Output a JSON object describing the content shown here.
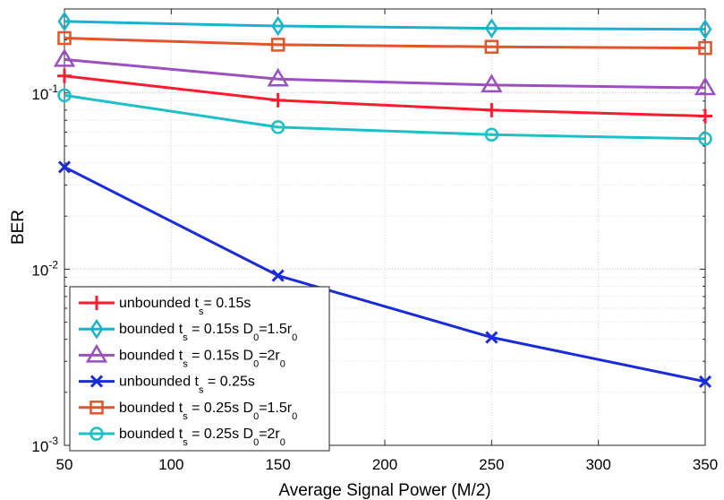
{
  "chart_data": {
    "type": "line",
    "x": [
      50,
      150,
      250,
      350
    ],
    "x_ticks": [
      50,
      100,
      150,
      200,
      250,
      300,
      350
    ],
    "xlim": [
      50,
      350
    ],
    "ylim": [
      0.001,
      0.3
    ],
    "y_scale": "log",
    "y_ticks": [
      {
        "value": 0.001,
        "base": "10",
        "exp": "-3"
      },
      {
        "value": 0.01,
        "base": "10",
        "exp": "-2"
      },
      {
        "value": 0.1,
        "base": "10",
        "exp": "-1"
      }
    ],
    "xlabel": "Average Signal Power (M/2)",
    "ylabel": "BER",
    "grid": true,
    "legend_position": "bottom-left",
    "series": [
      {
        "name": "unbounded t_s= 0.15s",
        "label_parts": {
          "pre": "unbounded t",
          "sub1": "s",
          "mid": "= 0.15s",
          "sub2": "",
          "post": ""
        },
        "color": "#ff1a2e",
        "marker": "plus",
        "values": [
          0.125,
          0.091,
          0.08,
          0.074
        ]
      },
      {
        "name": "bounded t_s = 0.15s D_0=1.5r_0",
        "label_parts": {
          "pre": "bounded t",
          "sub1": "s",
          "mid": " = 0.15s D",
          "sub2": "0",
          "post": "=1.5r",
          "sub3": "0"
        },
        "color": "#1ab3cf",
        "marker": "diamond",
        "values": [
          0.255,
          0.24,
          0.233,
          0.23
        ]
      },
      {
        "name": "bounded t_s = 0.15s D_0=2r_0",
        "label_parts": {
          "pre": "bounded t",
          "sub1": "s",
          "mid": " = 0.15s D",
          "sub2": "0",
          "post": "=2r",
          "sub3": "0"
        },
        "color": "#9b4fc0",
        "marker": "triangle",
        "values": [
          0.155,
          0.12,
          0.111,
          0.107
        ]
      },
      {
        "name": "unbounded t_s = 0.25s",
        "label_parts": {
          "pre": "unbounded t",
          "sub1": "s",
          "mid": " = 0.25s",
          "sub2": "",
          "post": ""
        },
        "color": "#1a2bdc",
        "marker": "x",
        "values": [
          0.038,
          0.0092,
          0.0041,
          0.0023
        ]
      },
      {
        "name": "bounded t_s = 0.25s D_0=1.5r_0",
        "label_parts": {
          "pre": "bounded t",
          "sub1": "s",
          "mid": " = 0.25s D",
          "sub2": "0",
          "post": "=1.5r",
          "sub3": "0"
        },
        "color": "#e2542a",
        "marker": "square",
        "values": [
          0.205,
          0.188,
          0.183,
          0.18
        ]
      },
      {
        "name": "bounded t_s = 0.25s D_0=2r_0",
        "label_parts": {
          "pre": "bounded t",
          "sub1": "s",
          "mid": " = 0.25s D",
          "sub2": "0",
          "post": "=2r",
          "sub3": "0"
        },
        "color": "#1cc0c6",
        "marker": "circle",
        "values": [
          0.097,
          0.064,
          0.058,
          0.055
        ]
      }
    ]
  }
}
